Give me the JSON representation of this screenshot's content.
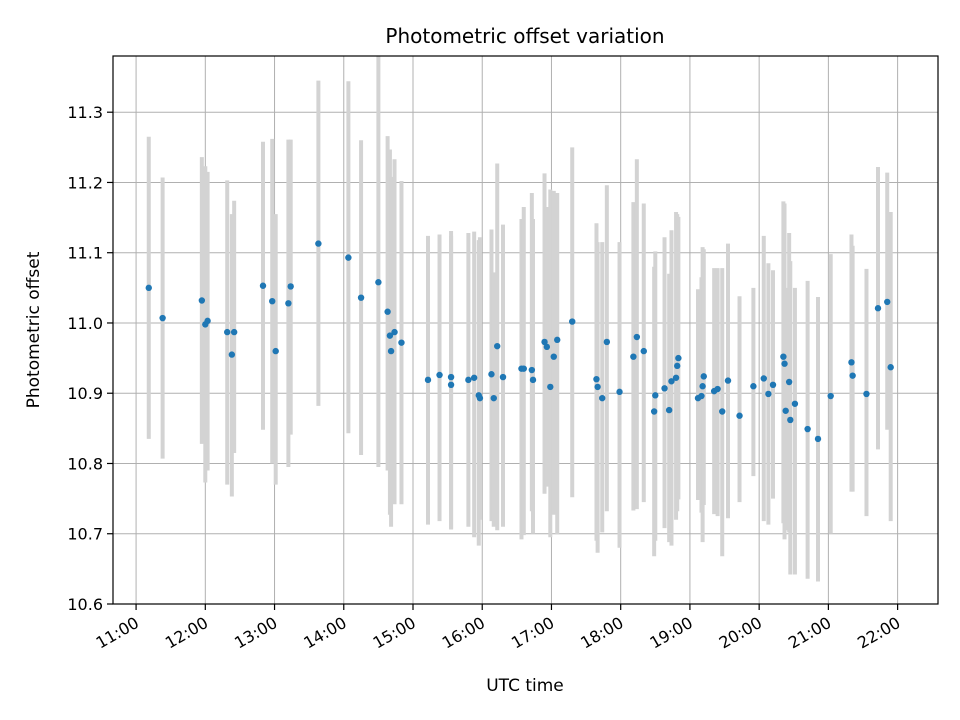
{
  "chart_data": {
    "type": "scatter",
    "title": "Photometric offset variation",
    "xlabel": "UTC time",
    "ylabel": "Photometric offset",
    "xlim": [
      "10:40",
      "22:35"
    ],
    "ylim": [
      10.6,
      11.38
    ],
    "x_ticks": [
      "11:00",
      "12:00",
      "13:00",
      "14:00",
      "15:00",
      "16:00",
      "17:00",
      "18:00",
      "19:00",
      "20:00",
      "21:00",
      "22:00"
    ],
    "y_ticks": [
      "10.6",
      "10.7",
      "10.8",
      "10.9",
      "11.0",
      "11.1",
      "11.2",
      "11.3"
    ],
    "grid": true,
    "marker_color": "#1f77b4",
    "errorbar_color": "#d3d3d3",
    "series": [
      {
        "x": [
          "11:11",
          "11:23",
          "11:57",
          "12:00",
          "12:02",
          "12:19",
          "12:23",
          "12:25",
          "12:50",
          "12:58",
          "13:01",
          "13:12",
          "13:14",
          "13:38",
          "14:04",
          "14:15",
          "14:30",
          "14:38",
          "14:40",
          "14:41",
          "14:44",
          "14:50",
          "15:13",
          "15:23",
          "15:33",
          "15:33",
          "15:48",
          "15:53",
          "15:57",
          "15:58",
          "16:08",
          "16:10",
          "16:13",
          "16:18",
          "16:34",
          "16:36",
          "16:43",
          "16:44",
          "16:54",
          "16:56",
          "16:59",
          "17:02",
          "17:05",
          "17:18",
          "17:39",
          "17:40",
          "17:44",
          "17:48",
          "17:59",
          "18:11",
          "18:14",
          "18:20",
          "18:29",
          "18:30",
          "18:38",
          "18:42",
          "18:44",
          "18:48",
          "18:49",
          "18:50",
          "19:07",
          "19:10",
          "19:11",
          "19:12",
          "19:21",
          "19:24",
          "19:28",
          "19:33",
          "19:43",
          "19:55",
          "20:04",
          "20:08",
          "20:12",
          "20:21",
          "20:22",
          "20:23",
          "20:26",
          "20:27",
          "20:31",
          "20:42",
          "20:51",
          "21:02",
          "21:20",
          "21:21",
          "21:33",
          "21:43",
          "21:51",
          "21:54"
        ],
        "y": [
          11.05,
          11.007,
          11.032,
          10.998,
          11.003,
          10.987,
          10.955,
          10.987,
          11.053,
          11.031,
          10.96,
          11.028,
          11.052,
          11.113,
          11.093,
          11.036,
          11.058,
          11.016,
          10.982,
          10.96,
          10.987,
          10.972,
          10.919,
          10.926,
          10.923,
          10.912,
          10.919,
          10.922,
          10.897,
          10.893,
          10.927,
          10.893,
          10.967,
          10.923,
          10.935,
          10.935,
          10.933,
          10.919,
          10.973,
          10.966,
          10.909,
          10.952,
          10.976,
          11.002,
          10.92,
          10.909,
          10.893,
          10.973,
          10.902,
          10.952,
          10.98,
          10.96,
          10.874,
          10.897,
          10.907,
          10.876,
          10.917,
          10.922,
          10.939,
          10.95,
          10.893,
          10.896,
          10.91,
          10.924,
          10.903,
          10.906,
          10.874,
          10.918,
          10.868,
          10.91,
          10.921,
          10.899,
          10.912,
          10.952,
          10.942,
          10.875,
          10.916,
          10.862,
          10.885,
          10.849,
          10.835,
          10.896,
          10.944,
          10.925,
          10.899,
          11.021,
          11.03,
          10.937
        ],
        "err_low": [
          10.835,
          10.807,
          10.828,
          10.773,
          10.79,
          10.77,
          10.753,
          10.815,
          10.848,
          10.8,
          10.77,
          10.795,
          10.841,
          10.882,
          10.843,
          10.812,
          10.795,
          10.79,
          10.727,
          10.71,
          10.742,
          10.742,
          10.713,
          10.718,
          10.707,
          10.706,
          10.71,
          10.695,
          10.683,
          10.72,
          10.718,
          10.71,
          10.705,
          10.71,
          10.692,
          10.698,
          10.732,
          10.7,
          10.757,
          10.767,
          10.695,
          10.727,
          10.699,
          10.752,
          10.69,
          10.673,
          10.702,
          10.732,
          10.68,
          10.733,
          10.735,
          10.745,
          10.668,
          10.69,
          10.708,
          10.688,
          10.683,
          10.72,
          10.732,
          10.749,
          10.748,
          10.73,
          10.688,
          10.741,
          10.728,
          10.725,
          10.668,
          10.722,
          10.745,
          10.782,
          10.718,
          10.713,
          10.75,
          10.715,
          10.692,
          10.705,
          10.702,
          10.642,
          10.642,
          10.636,
          10.632,
          10.7,
          10.76,
          10.76,
          10.725,
          10.82,
          10.848,
          10.718
        ],
        "err_high": [
          11.265,
          11.207,
          11.236,
          11.223,
          11.215,
          11.203,
          11.155,
          11.174,
          11.258,
          11.262,
          11.155,
          11.261,
          11.261,
          11.345,
          11.344,
          11.26,
          11.38,
          11.266,
          11.247,
          11.208,
          11.233,
          11.202,
          11.124,
          11.126,
          11.131,
          11.124,
          11.128,
          11.13,
          11.118,
          11.122,
          11.133,
          11.072,
          11.227,
          11.14,
          11.148,
          11.165,
          11.185,
          11.148,
          11.213,
          11.165,
          11.19,
          11.188,
          11.185,
          11.25,
          11.142,
          11.115,
          11.115,
          11.196,
          11.115,
          11.172,
          11.233,
          11.17,
          11.08,
          11.102,
          11.122,
          11.07,
          11.132,
          11.158,
          11.155,
          11.151,
          11.048,
          11.065,
          11.108,
          11.105,
          11.078,
          11.078,
          11.078,
          11.113,
          11.038,
          11.05,
          11.124,
          11.085,
          11.075,
          11.173,
          11.17,
          11.05,
          11.128,
          11.088,
          11.05,
          11.06,
          11.037,
          11.098,
          11.126,
          11.11,
          11.077,
          11.222,
          11.214,
          11.158
        ]
      }
    ]
  }
}
